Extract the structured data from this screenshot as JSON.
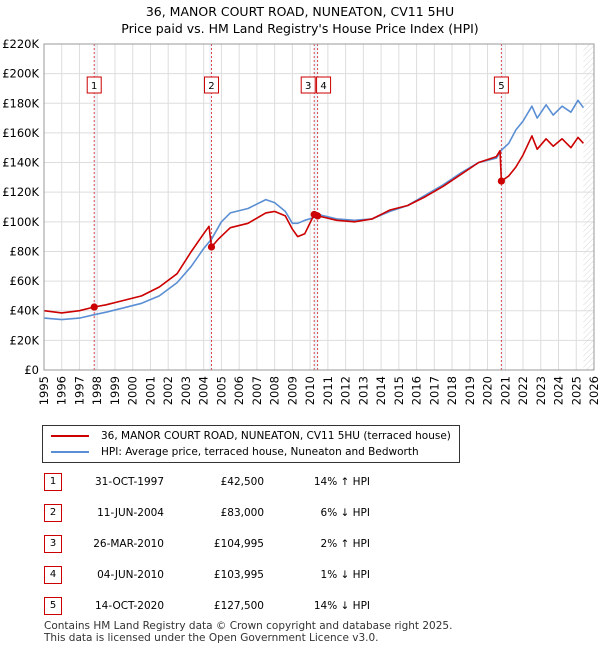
{
  "title_line1": "36, MANOR COURT ROAD, NUNEATON, CV11 5HU",
  "title_line2": "Price paid vs. HM Land Registry's House Price Index (HPI)",
  "colors": {
    "price": "#cc0000",
    "hpi": "#5b8fd4",
    "grid": "#dddddd",
    "band": "#eef2fa"
  },
  "legend": {
    "price_label": "36, MANOR COURT ROAD, NUNEATON, CV11 5HU (terraced house)",
    "hpi_label": "HPI: Average price, terraced house, Nuneaton and Bedworth"
  },
  "sales": [
    {
      "num": "1",
      "date": "31-OCT-1997",
      "price": "£42,500",
      "hpi": "14% ↑ HPI"
    },
    {
      "num": "2",
      "date": "11-JUN-2004",
      "price": "£83,000",
      "hpi": "6% ↓ HPI"
    },
    {
      "num": "3",
      "date": "26-MAR-2010",
      "price": "£104,995",
      "hpi": "2% ↑ HPI"
    },
    {
      "num": "4",
      "date": "04-JUN-2010",
      "price": "£103,995",
      "hpi": "1% ↓ HPI"
    },
    {
      "num": "5",
      "date": "14-OCT-2020",
      "price": "£127,500",
      "hpi": "14% ↓ HPI"
    }
  ],
  "footer_line1": "Contains HM Land Registry data © Crown copyright and database right 2025.",
  "footer_line2": "This data is licensed under the Open Government Licence v3.0.",
  "chart_data": {
    "type": "line",
    "xlim": [
      1995,
      2026
    ],
    "ylim": [
      0,
      220000
    ],
    "y_ticks": [
      0,
      20000,
      40000,
      60000,
      80000,
      100000,
      120000,
      140000,
      160000,
      180000,
      200000,
      220000
    ],
    "y_tick_labels": [
      "£0",
      "£20K",
      "£40K",
      "£60K",
      "£80K",
      "£100K",
      "£120K",
      "£140K",
      "£160K",
      "£180K",
      "£200K",
      "£220K"
    ],
    "x_ticks": [
      1995,
      1996,
      1997,
      1998,
      1999,
      2000,
      2001,
      2002,
      2003,
      2004,
      2005,
      2006,
      2007,
      2008,
      2009,
      2010,
      2011,
      2012,
      2013,
      2014,
      2015,
      2016,
      2017,
      2018,
      2019,
      2020,
      2021,
      2022,
      2023,
      2024,
      2025,
      2026
    ],
    "x_tick_labels": [
      "1995",
      "1996",
      "1997",
      "1998",
      "1999",
      "2000",
      "2001",
      "2002",
      "2003",
      "2004",
      "2005",
      "2006",
      "2007",
      "2008",
      "2009",
      "2010",
      "2011",
      "2012",
      "2013",
      "2014",
      "2015",
      "2016",
      "2017",
      "2018",
      "2019",
      "2020",
      "2021",
      "2022",
      "2023",
      "2024",
      "2025",
      "2026"
    ],
    "data_end": 2025.4,
    "series": [
      {
        "name": "36, MANOR COURT ROAD, NUNEATON, CV11 5HU (terraced house)",
        "color": "#cc0000",
        "x": [
          1995.0,
          1996.0,
          1997.0,
          1997.83,
          1998.5,
          1999.5,
          2000.5,
          2001.5,
          2002.5,
          2003.3,
          2004.0,
          2004.3,
          2004.44,
          2004.8,
          2005.5,
          2006.5,
          2007.5,
          2008.0,
          2008.6,
          2009.0,
          2009.3,
          2009.7,
          2010.23,
          2010.42,
          2010.8,
          2011.5,
          2012.5,
          2013.5,
          2014.5,
          2015.5,
          2016.5,
          2017.5,
          2018.5,
          2019.5,
          2020.5,
          2020.7,
          2020.78,
          2021.2,
          2021.6,
          2022.0,
          2022.5,
          2022.8,
          2023.3,
          2023.7,
          2024.2,
          2024.7,
          2025.1,
          2025.4
        ],
        "values": [
          40000,
          38500,
          40000,
          42500,
          44000,
          47000,
          50000,
          56000,
          65000,
          80000,
          92000,
          97000,
          83000,
          88000,
          96000,
          99000,
          106000,
          107000,
          104000,
          95000,
          90000,
          92000,
          104995,
          103995,
          103000,
          101000,
          100000,
          102000,
          108000,
          111000,
          117000,
          124000,
          132000,
          140000,
          144000,
          148000,
          127500,
          131000,
          137000,
          145000,
          158000,
          149000,
          156000,
          151000,
          156000,
          150000,
          157000,
          153000
        ]
      },
      {
        "name": "HPI: Average price, terraced house, Nuneaton and Bedworth",
        "color": "#5b8fd4",
        "x": [
          1995.0,
          1996.0,
          1997.0,
          1997.83,
          1998.5,
          1999.5,
          2000.5,
          2001.5,
          2002.5,
          2003.3,
          2004.0,
          2004.44,
          2005.0,
          2005.5,
          2006.5,
          2007.5,
          2008.0,
          2008.6,
          2009.0,
          2009.3,
          2009.7,
          2010.23,
          2010.42,
          2010.8,
          2011.5,
          2012.5,
          2013.5,
          2014.5,
          2015.5,
          2016.5,
          2017.5,
          2018.5,
          2019.5,
          2020.5,
          2020.78,
          2021.2,
          2021.6,
          2022.0,
          2022.5,
          2022.8,
          2023.3,
          2023.7,
          2024.2,
          2024.7,
          2025.1,
          2025.4
        ],
        "values": [
          35000,
          34000,
          35000,
          37300,
          39000,
          42000,
          45000,
          50000,
          59000,
          70000,
          82000,
          88300,
          100000,
          106000,
          109000,
          115000,
          113000,
          107000,
          99000,
          99000,
          101000,
          102900,
          105000,
          104000,
          102000,
          101000,
          102000,
          107000,
          111000,
          118000,
          125000,
          133000,
          140000,
          143000,
          148300,
          153000,
          162000,
          168000,
          178000,
          170000,
          179000,
          172000,
          178000,
          174000,
          182000,
          177000
        ]
      }
    ],
    "markers": [
      {
        "label": "1",
        "x": 1997.83,
        "y": 42500
      },
      {
        "label": "2",
        "x": 2004.44,
        "y": 83000
      },
      {
        "label": "3",
        "x": 2010.23,
        "y": 104995
      },
      {
        "label": "4",
        "x": 2010.42,
        "y": 103995
      },
      {
        "label": "5",
        "x": 2020.78,
        "y": 127500
      }
    ]
  }
}
